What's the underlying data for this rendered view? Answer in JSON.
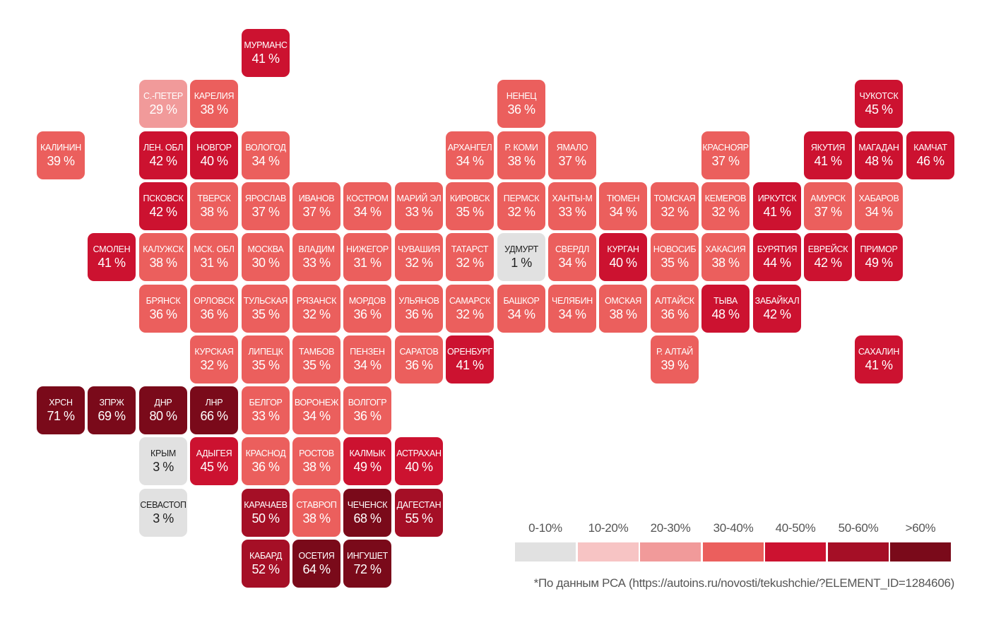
{
  "legend": {
    "bins": [
      {
        "label": "0-10%",
        "color": "#e1e1e1"
      },
      {
        "label": "10-20%",
        "color": "#f7c4c4"
      },
      {
        "label": "20-30%",
        "color": "#f19a9a"
      },
      {
        "label": "30-40%",
        "color": "#eb5f5d"
      },
      {
        "label": "40-50%",
        "color": "#cc1230"
      },
      {
        "label": "50-60%",
        "color": "#a50f26"
      },
      {
        "label": ">60%",
        "color": "#7a0a1a"
      }
    ]
  },
  "footnote": "*По данным РСА (https://autoins.ru/novosti/tekushchie/?ELEMENT_ID=1284606)",
  "regions": [
    {
      "name": "МУРМАНС",
      "value": "41 %",
      "pct": 41,
      "col": 4,
      "row": 0
    },
    {
      "name": "С.-ПЕТЕР",
      "value": "29 %",
      "pct": 29,
      "col": 2,
      "row": 1
    },
    {
      "name": "КАРЕЛИЯ",
      "value": "38 %",
      "pct": 38,
      "col": 3,
      "row": 1
    },
    {
      "name": "НЕНЕЦ",
      "value": "36 %",
      "pct": 36,
      "col": 9,
      "row": 1
    },
    {
      "name": "ЧУКОТСК",
      "value": "45 %",
      "pct": 45,
      "col": 16,
      "row": 1
    },
    {
      "name": "КАЛИНИН",
      "value": "39 %",
      "pct": 39,
      "col": 0,
      "row": 2
    },
    {
      "name": "ЛЕН. ОБЛ",
      "value": "42 %",
      "pct": 42,
      "col": 2,
      "row": 2
    },
    {
      "name": "НОВГОР",
      "value": "40 %",
      "pct": 40,
      "col": 3,
      "row": 2
    },
    {
      "name": "ВОЛОГОД",
      "value": "34 %",
      "pct": 34,
      "col": 4,
      "row": 2
    },
    {
      "name": "АРХАНГЕЛ",
      "value": "34 %",
      "pct": 34,
      "col": 8,
      "row": 2
    },
    {
      "name": "Р. КОМИ",
      "value": "38 %",
      "pct": 38,
      "col": 9,
      "row": 2
    },
    {
      "name": "ЯМАЛО",
      "value": "37 %",
      "pct": 37,
      "col": 10,
      "row": 2
    },
    {
      "name": "КРАСНОЯР",
      "value": "37 %",
      "pct": 37,
      "col": 13,
      "row": 2
    },
    {
      "name": "ЯКУТИЯ",
      "value": "41 %",
      "pct": 41,
      "col": 15,
      "row": 2
    },
    {
      "name": "МАГАДАН",
      "value": "48 %",
      "pct": 48,
      "col": 16,
      "row": 2
    },
    {
      "name": "КАМЧАТ",
      "value": "46 %",
      "pct": 46,
      "col": 17,
      "row": 2
    },
    {
      "name": "ПСКОВСК",
      "value": "42 %",
      "pct": 42,
      "col": 2,
      "row": 3
    },
    {
      "name": "ТВЕРСК",
      "value": "38 %",
      "pct": 38,
      "col": 3,
      "row": 3
    },
    {
      "name": "ЯРОСЛАВ",
      "value": "37 %",
      "pct": 37,
      "col": 4,
      "row": 3
    },
    {
      "name": "ИВАНОВ",
      "value": "37 %",
      "pct": 37,
      "col": 5,
      "row": 3
    },
    {
      "name": "КОСТРОМ",
      "value": "34 %",
      "pct": 34,
      "col": 6,
      "row": 3
    },
    {
      "name": "МАРИЙ ЭЛ",
      "value": "33 %",
      "pct": 33,
      "col": 7,
      "row": 3
    },
    {
      "name": "КИРОВСК",
      "value": "35 %",
      "pct": 35,
      "col": 8,
      "row": 3
    },
    {
      "name": "ПЕРМСК",
      "value": "32 %",
      "pct": 32,
      "col": 9,
      "row": 3
    },
    {
      "name": "ХАНТЫ-М",
      "value": "33 %",
      "pct": 33,
      "col": 10,
      "row": 3
    },
    {
      "name": "ТЮМЕН",
      "value": "34 %",
      "pct": 34,
      "col": 11,
      "row": 3
    },
    {
      "name": "ТОМСКАЯ",
      "value": "32 %",
      "pct": 32,
      "col": 12,
      "row": 3
    },
    {
      "name": "КЕМЕРОВ",
      "value": "32 %",
      "pct": 32,
      "col": 13,
      "row": 3
    },
    {
      "name": "ИРКУТСК",
      "value": "41 %",
      "pct": 41,
      "col": 14,
      "row": 3
    },
    {
      "name": "АМУРСК",
      "value": "37 %",
      "pct": 37,
      "col": 15,
      "row": 3
    },
    {
      "name": "ХАБАРОВ",
      "value": "34 %",
      "pct": 34,
      "col": 16,
      "row": 3
    },
    {
      "name": "СМОЛЕН",
      "value": "41 %",
      "pct": 41,
      "col": 1,
      "row": 4
    },
    {
      "name": "КАЛУЖСК",
      "value": "38 %",
      "pct": 38,
      "col": 2,
      "row": 4
    },
    {
      "name": "МСК. ОБЛ",
      "value": "31 %",
      "pct": 31,
      "col": 3,
      "row": 4
    },
    {
      "name": "МОСКВА",
      "value": "30 %",
      "pct": 30,
      "col": 4,
      "row": 4
    },
    {
      "name": "ВЛАДИМ",
      "value": "33 %",
      "pct": 33,
      "col": 5,
      "row": 4
    },
    {
      "name": "НИЖЕГОР",
      "value": "31 %",
      "pct": 31,
      "col": 6,
      "row": 4
    },
    {
      "name": "ЧУВАШИЯ",
      "value": "32 %",
      "pct": 32,
      "col": 7,
      "row": 4
    },
    {
      "name": "ТАТАРСТ",
      "value": "32 %",
      "pct": 32,
      "col": 8,
      "row": 4
    },
    {
      "name": "УДМУРТ",
      "value": "1 %",
      "pct": 1,
      "col": 9,
      "row": 4
    },
    {
      "name": "СВЕРДЛ",
      "value": "34 %",
      "pct": 34,
      "col": 10,
      "row": 4
    },
    {
      "name": "КУРГАН",
      "value": "40 %",
      "pct": 40,
      "col": 11,
      "row": 4
    },
    {
      "name": "НОВОСИБ",
      "value": "35 %",
      "pct": 35,
      "col": 12,
      "row": 4
    },
    {
      "name": "ХАКАСИЯ",
      "value": "38 %",
      "pct": 38,
      "col": 13,
      "row": 4
    },
    {
      "name": "БУРЯТИЯ",
      "value": "44 %",
      "pct": 44,
      "col": 14,
      "row": 4
    },
    {
      "name": "ЕВРЕЙСК",
      "value": "42 %",
      "pct": 42,
      "col": 15,
      "row": 4
    },
    {
      "name": "ПРИМОР",
      "value": "49 %",
      "pct": 49,
      "col": 16,
      "row": 4
    },
    {
      "name": "БРЯНСК",
      "value": "36 %",
      "pct": 36,
      "col": 2,
      "row": 5
    },
    {
      "name": "ОРЛОВСК",
      "value": "36 %",
      "pct": 36,
      "col": 3,
      "row": 5
    },
    {
      "name": "ТУЛЬСКАЯ",
      "value": "35 %",
      "pct": 35,
      "col": 4,
      "row": 5
    },
    {
      "name": "РЯЗАНСК",
      "value": "32 %",
      "pct": 32,
      "col": 5,
      "row": 5
    },
    {
      "name": "МОРДОВ",
      "value": "36 %",
      "pct": 36,
      "col": 6,
      "row": 5
    },
    {
      "name": "УЛЬЯНОВ",
      "value": "36 %",
      "pct": 36,
      "col": 7,
      "row": 5
    },
    {
      "name": "САМАРСК",
      "value": "32 %",
      "pct": 32,
      "col": 8,
      "row": 5
    },
    {
      "name": "БАШКОР",
      "value": "34 %",
      "pct": 34,
      "col": 9,
      "row": 5
    },
    {
      "name": "ЧЕЛЯБИН",
      "value": "34 %",
      "pct": 34,
      "col": 10,
      "row": 5
    },
    {
      "name": "ОМСКАЯ",
      "value": "38 %",
      "pct": 38,
      "col": 11,
      "row": 5
    },
    {
      "name": "АЛТАЙСК",
      "value": "36 %",
      "pct": 36,
      "col": 12,
      "row": 5
    },
    {
      "name": "ТЫВА",
      "value": "48 %",
      "pct": 48,
      "col": 13,
      "row": 5
    },
    {
      "name": "ЗАБАЙКАЛ",
      "value": "42 %",
      "pct": 42,
      "col": 14,
      "row": 5
    },
    {
      "name": "КУРСКАЯ",
      "value": "32 %",
      "pct": 32,
      "col": 3,
      "row": 6
    },
    {
      "name": "ЛИПЕЦК",
      "value": "35 %",
      "pct": 35,
      "col": 4,
      "row": 6
    },
    {
      "name": "ТАМБОВ",
      "value": "35 %",
      "pct": 35,
      "col": 5,
      "row": 6
    },
    {
      "name": "ПЕНЗЕН",
      "value": "34 %",
      "pct": 34,
      "col": 6,
      "row": 6
    },
    {
      "name": "САРАТОВ",
      "value": "36 %",
      "pct": 36,
      "col": 7,
      "row": 6
    },
    {
      "name": "ОРЕНБУРГ",
      "value": "41 %",
      "pct": 41,
      "col": 8,
      "row": 6
    },
    {
      "name": "Р. АЛТАЙ",
      "value": "39 %",
      "pct": 39,
      "col": 12,
      "row": 6
    },
    {
      "name": "САХАЛИН",
      "value": "41 %",
      "pct": 41,
      "col": 16,
      "row": 6
    },
    {
      "name": "ХРСН",
      "value": "71 %",
      "pct": 71,
      "col": 0,
      "row": 7
    },
    {
      "name": "ЗПРЖ",
      "value": "69 %",
      "pct": 69,
      "col": 1,
      "row": 7
    },
    {
      "name": "ДНР",
      "value": "80 %",
      "pct": 80,
      "col": 2,
      "row": 7
    },
    {
      "name": "ЛНР",
      "value": "66 %",
      "pct": 66,
      "col": 3,
      "row": 7
    },
    {
      "name": "БЕЛГОР",
      "value": "33 %",
      "pct": 33,
      "col": 4,
      "row": 7
    },
    {
      "name": "ВОРОНЕЖ",
      "value": "34 %",
      "pct": 34,
      "col": 5,
      "row": 7
    },
    {
      "name": "ВОЛГОГР",
      "value": "36 %",
      "pct": 36,
      "col": 6,
      "row": 7
    },
    {
      "name": "КРЫМ",
      "value": "3 %",
      "pct": 3,
      "col": 2,
      "row": 8
    },
    {
      "name": "АДЫГЕЯ",
      "value": "45 %",
      "pct": 45,
      "col": 3,
      "row": 8
    },
    {
      "name": "КРАСНОД",
      "value": "36 %",
      "pct": 36,
      "col": 4,
      "row": 8
    },
    {
      "name": "РОСТОВ",
      "value": "38 %",
      "pct": 38,
      "col": 5,
      "row": 8
    },
    {
      "name": "КАЛМЫК",
      "value": "49 %",
      "pct": 49,
      "col": 6,
      "row": 8
    },
    {
      "name": "АСТРАХАН",
      "value": "40 %",
      "pct": 40,
      "col": 7,
      "row": 8
    },
    {
      "name": "СЕВАСТОП",
      "value": "3 %",
      "pct": 3,
      "col": 2,
      "row": 9
    },
    {
      "name": "КАРАЧАЕВ",
      "value": "50 %",
      "pct": 50,
      "col": 4,
      "row": 9
    },
    {
      "name": "СТАВРОП",
      "value": "38 %",
      "pct": 38,
      "col": 5,
      "row": 9
    },
    {
      "name": "ЧЕЧЕНСК",
      "value": "68 %",
      "pct": 68,
      "col": 6,
      "row": 9
    },
    {
      "name": "ДАГЕСТАН",
      "value": "55 %",
      "pct": 55,
      "col": 7,
      "row": 9
    },
    {
      "name": "КАБАРД",
      "value": "52 %",
      "pct": 52,
      "col": 4,
      "row": 10
    },
    {
      "name": "ОСЕТИЯ",
      "value": "64 %",
      "pct": 64,
      "col": 5,
      "row": 10
    },
    {
      "name": "ИНГУШЕТ",
      "value": "72 %",
      "pct": 72,
      "col": 6,
      "row": 10
    }
  ]
}
